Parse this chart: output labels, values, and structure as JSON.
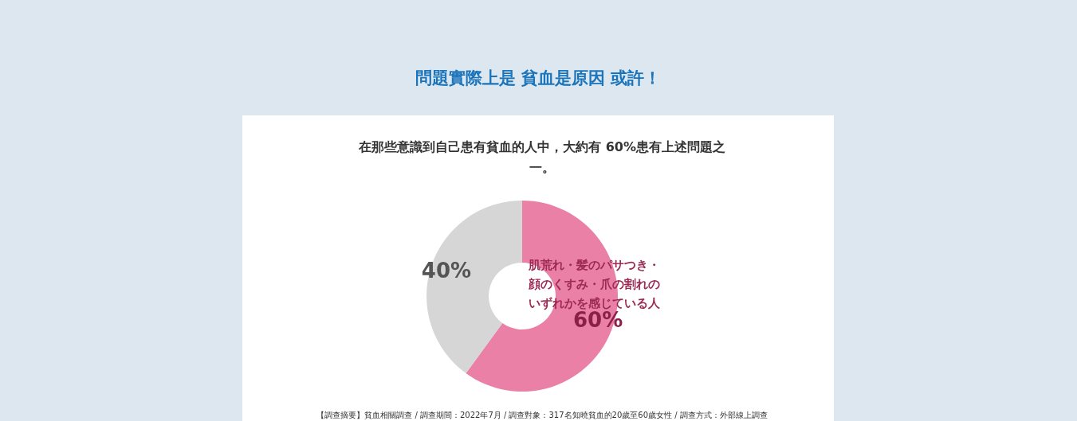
{
  "chart_data": {
    "type": "donut",
    "title": "問題實際上是 貧血是原因 或許！",
    "subtitle": "在那些意識到自己患有貧血的人中，大約有 60%患有上述問題之一。",
    "categories": [
      "肌荒れ・髪のパサつき・顔のくすみ・爪の割れのいずれかを感じている人",
      null
    ],
    "values": [
      60,
      40
    ],
    "colors": [
      "#ea80a6",
      "#d6d6d6"
    ],
    "value_labels": [
      "60%",
      "40%"
    ],
    "annotations": [
      "【調查摘要】貧血相關調查 / 調查期間：2022年7月 / 調查對象：317名知曉貧血的20歲至60歲女性 / 調查方式：外部線上調查"
    ]
  }
}
